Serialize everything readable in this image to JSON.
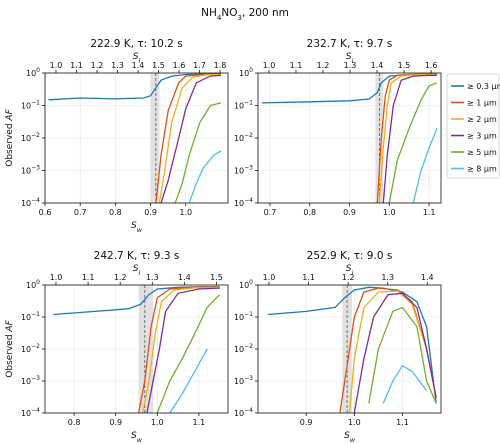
{
  "figure": {
    "suptitle": "NH4NO3, 200 nm",
    "ylabel": "Observed AF",
    "legend": [
      {
        "label": "≥ 0.3 μm",
        "color": "#1f77b4"
      },
      {
        "label": "≥ 1 μm",
        "color": "#d95319"
      },
      {
        "label": "≥ 2 μm",
        "color": "#edb120"
      },
      {
        "label": "≥ 3 μm",
        "color": "#7e2f8e"
      },
      {
        "label": "≥ 5 μm",
        "color": "#77ac30"
      },
      {
        "label": "≥ 8 μm",
        "color": "#4dbeee"
      }
    ]
  },
  "chart_data": [
    {
      "type": "line",
      "title": "222.9 K, τ: 10.2 s",
      "xlabel": "Sw",
      "x2label": "Si",
      "xlim": [
        0.6,
        1.12
      ],
      "ylim": [
        0.0001,
        1
      ],
      "y_scale": "log",
      "xticks": [
        "0.6",
        "0.7",
        "0.8",
        "0.9",
        "1.0"
      ],
      "x2ticks": [
        "1.0",
        "1.1",
        "1.2",
        "1.3",
        "1.4",
        "1.5",
        "1.6",
        "1.7",
        "1.8"
      ],
      "onset_band": [
        0.9,
        0.925
      ],
      "onset_line": 0.915,
      "series": [
        {
          "name": "≥ 0.3 μm",
          "x": [
            0.61,
            0.7,
            0.8,
            0.88,
            0.9,
            0.915,
            0.93,
            0.96,
            1.0,
            1.05,
            1.1
          ],
          "y": [
            0.15,
            0.17,
            0.16,
            0.17,
            0.2,
            0.35,
            0.6,
            0.8,
            0.9,
            0.93,
            0.95
          ]
        },
        {
          "name": "≥ 1 μm",
          "x": [
            0.915,
            0.93,
            0.95,
            0.98,
            1.0,
            1.05,
            1.1
          ],
          "y": [
            0.0001,
            0.003,
            0.07,
            0.5,
            0.8,
            0.9,
            0.92
          ]
        },
        {
          "name": "≥ 2 μm",
          "x": [
            0.925,
            0.94,
            0.96,
            0.99,
            1.02,
            1.06,
            1.1
          ],
          "y": [
            0.0001,
            0.001,
            0.03,
            0.35,
            0.75,
            0.88,
            0.9
          ]
        },
        {
          "name": "≥ 3 μm",
          "x": [
            0.93,
            0.95,
            0.98,
            1.0,
            1.03,
            1.07,
            1.1
          ],
          "y": [
            0.0001,
            0.0005,
            0.01,
            0.08,
            0.5,
            0.8,
            0.85
          ]
        },
        {
          "name": "≥ 5 μm",
          "x": [
            0.97,
            0.99,
            1.01,
            1.04,
            1.07,
            1.1
          ],
          "y": [
            0.0001,
            0.0004,
            0.003,
            0.03,
            0.1,
            0.12
          ]
        },
        {
          "name": "≥ 8 μm",
          "x": [
            1.01,
            1.03,
            1.05,
            1.08,
            1.1
          ],
          "y": [
            0.0001,
            0.0004,
            0.0012,
            0.003,
            0.004
          ]
        }
      ]
    },
    {
      "type": "line",
      "title": "232.7 K, τ: 9.7 s",
      "xlabel": "",
      "x2label": "Si",
      "xlim": [
        0.67,
        1.13
      ],
      "ylim": [
        0.0001,
        1
      ],
      "y_scale": "log",
      "xticks": [
        "0.7",
        "0.8",
        "0.9",
        "1.0",
        "1.1"
      ],
      "x2ticks": [
        "1.0",
        "1.1",
        "1.2",
        "1.3",
        "1.4",
        "1.5",
        "1.6"
      ],
      "onset_band": [
        0.965,
        0.985
      ],
      "onset_line": 0.975,
      "series": [
        {
          "name": "≥ 0.3 μm",
          "x": [
            0.68,
            0.8,
            0.9,
            0.95,
            0.97,
            0.98,
            1.0,
            1.05,
            1.1,
            1.12
          ],
          "y": [
            0.12,
            0.13,
            0.14,
            0.16,
            0.25,
            0.5,
            0.8,
            0.9,
            0.92,
            0.93
          ]
        },
        {
          "name": "≥ 1 μm",
          "x": [
            0.97,
            0.98,
            0.99,
            1.0,
            1.02,
            1.05,
            1.1,
            1.12
          ],
          "y": [
            0.0001,
            0.01,
            0.2,
            0.6,
            0.85,
            0.9,
            0.92,
            0.93
          ]
        },
        {
          "name": "≥ 2 μm",
          "x": [
            0.975,
            0.985,
            0.995,
            1.005,
            1.03,
            1.06,
            1.1,
            1.12
          ],
          "y": [
            0.0001,
            0.005,
            0.1,
            0.5,
            0.8,
            0.88,
            0.9,
            0.9
          ]
        },
        {
          "name": "≥ 3 μm",
          "x": [
            0.985,
            0.995,
            1.01,
            1.03,
            1.06,
            1.1,
            1.12
          ],
          "y": [
            0.0001,
            0.003,
            0.1,
            0.6,
            0.8,
            0.85,
            0.85
          ]
        },
        {
          "name": "≥ 5 μm",
          "x": [
            1.0,
            1.02,
            1.05,
            1.08,
            1.1,
            1.12
          ],
          "y": [
            0.0001,
            0.002,
            0.02,
            0.15,
            0.4,
            0.5
          ]
        },
        {
          "name": "≥ 8 μm",
          "x": [
            1.06,
            1.08,
            1.1,
            1.12
          ],
          "y": [
            0.0001,
            0.001,
            0.005,
            0.02
          ]
        }
      ]
    },
    {
      "type": "line",
      "title": "242.7 K, τ: 9.3 s",
      "xlabel": "Sw",
      "x2label": "Si",
      "xlim": [
        0.73,
        1.17
      ],
      "ylim": [
        0.0001,
        1
      ],
      "y_scale": "log",
      "xticks": [
        "0.8",
        "0.9",
        "1.0",
        "1.1"
      ],
      "x2ticks": [
        "1.0",
        "1.1",
        "1.2",
        "1.3",
        "1.4",
        "1.5"
      ],
      "onset_band": [
        0.955,
        0.99
      ],
      "onset_line": 0.97,
      "series": [
        {
          "name": "≥ 0.3 μm",
          "x": [
            0.75,
            0.85,
            0.93,
            0.96,
            0.98,
            1.0,
            1.05,
            1.1,
            1.15
          ],
          "y": [
            0.12,
            0.15,
            0.18,
            0.25,
            0.5,
            0.75,
            0.85,
            0.88,
            0.9
          ]
        },
        {
          "name": "≥ 1 μm",
          "x": [
            0.955,
            0.97,
            0.985,
            1.0,
            1.03,
            1.08,
            1.15
          ],
          "y": [
            0.0001,
            0.001,
            0.05,
            0.4,
            0.75,
            0.85,
            0.88
          ]
        },
        {
          "name": "≥ 2 μm",
          "x": [
            0.965,
            0.98,
            0.995,
            1.01,
            1.04,
            1.09,
            1.15
          ],
          "y": [
            0.0001,
            0.001,
            0.03,
            0.3,
            0.7,
            0.82,
            0.85
          ]
        },
        {
          "name": "≥ 3 μm",
          "x": [
            0.975,
            0.99,
            1.005,
            1.02,
            1.05,
            1.1,
            1.15
          ],
          "y": [
            0.0001,
            0.001,
            0.01,
            0.15,
            0.55,
            0.75,
            0.8
          ]
        },
        {
          "name": "≥ 5 μm",
          "x": [
            1.0,
            1.03,
            1.06,
            1.09,
            1.12,
            1.15
          ],
          "y": [
            0.0001,
            0.001,
            0.005,
            0.03,
            0.2,
            0.5
          ]
        },
        {
          "name": "≥ 8 μm",
          "x": [
            1.03,
            1.06,
            1.09,
            1.12
          ],
          "y": [
            0.0001,
            0.0004,
            0.002,
            0.01
          ]
        }
      ]
    },
    {
      "type": "line",
      "title": "252.9 K, τ: 9.0 s",
      "xlabel": "Sw",
      "x2label": "Si",
      "xlim": [
        0.8,
        1.18
      ],
      "ylim": [
        0.0001,
        1
      ],
      "y_scale": "log",
      "xticks": [
        "0.9",
        "1.0",
        "1.1"
      ],
      "x2ticks": [
        "1.0",
        "1.1",
        "1.2",
        "1.3",
        "1.4"
      ],
      "onset_band": [
        0.975,
        0.995
      ],
      "onset_line": 0.985,
      "series": [
        {
          "name": "≥ 0.3 μm",
          "x": [
            0.82,
            0.9,
            0.96,
            0.98,
            1.0,
            1.03,
            1.06,
            1.1,
            1.13,
            1.15,
            1.17
          ],
          "y": [
            0.12,
            0.15,
            0.2,
            0.4,
            0.7,
            0.85,
            0.8,
            0.6,
            0.3,
            0.05,
            0.0002
          ]
        },
        {
          "name": "≥ 1 μm",
          "x": [
            0.97,
            0.985,
            1.0,
            1.02,
            1.05,
            1.09,
            1.12,
            1.15,
            1.17
          ],
          "y": [
            0.0001,
            0.003,
            0.1,
            0.6,
            0.8,
            0.7,
            0.3,
            0.01,
            0.0003
          ]
        },
        {
          "name": "≥ 2 μm",
          "x": [
            0.99,
            1.0,
            1.02,
            1.05,
            1.09,
            1.12,
            1.15,
            1.17
          ],
          "y": [
            0.0001,
            0.005,
            0.2,
            0.6,
            0.65,
            0.25,
            0.01,
            0.0003
          ]
        },
        {
          "name": "≥ 3 μm",
          "x": [
            1.0,
            1.02,
            1.04,
            1.07,
            1.1,
            1.13,
            1.15,
            1.17
          ],
          "y": [
            0.0001,
            0.005,
            0.1,
            0.5,
            0.55,
            0.2,
            0.01,
            0.0003
          ]
        },
        {
          "name": "≥ 5 μm",
          "x": [
            1.03,
            1.05,
            1.08,
            1.1,
            1.13,
            1.15,
            1.17
          ],
          "y": [
            0.0002,
            0.01,
            0.15,
            0.2,
            0.05,
            0.001,
            0.0002
          ]
        },
        {
          "name": "≥ 8 μm",
          "x": [
            1.06,
            1.08,
            1.1,
            1.12,
            1.15
          ],
          "y": [
            0.0002,
            0.001,
            0.003,
            0.002,
            0.0005
          ]
        }
      ]
    }
  ]
}
